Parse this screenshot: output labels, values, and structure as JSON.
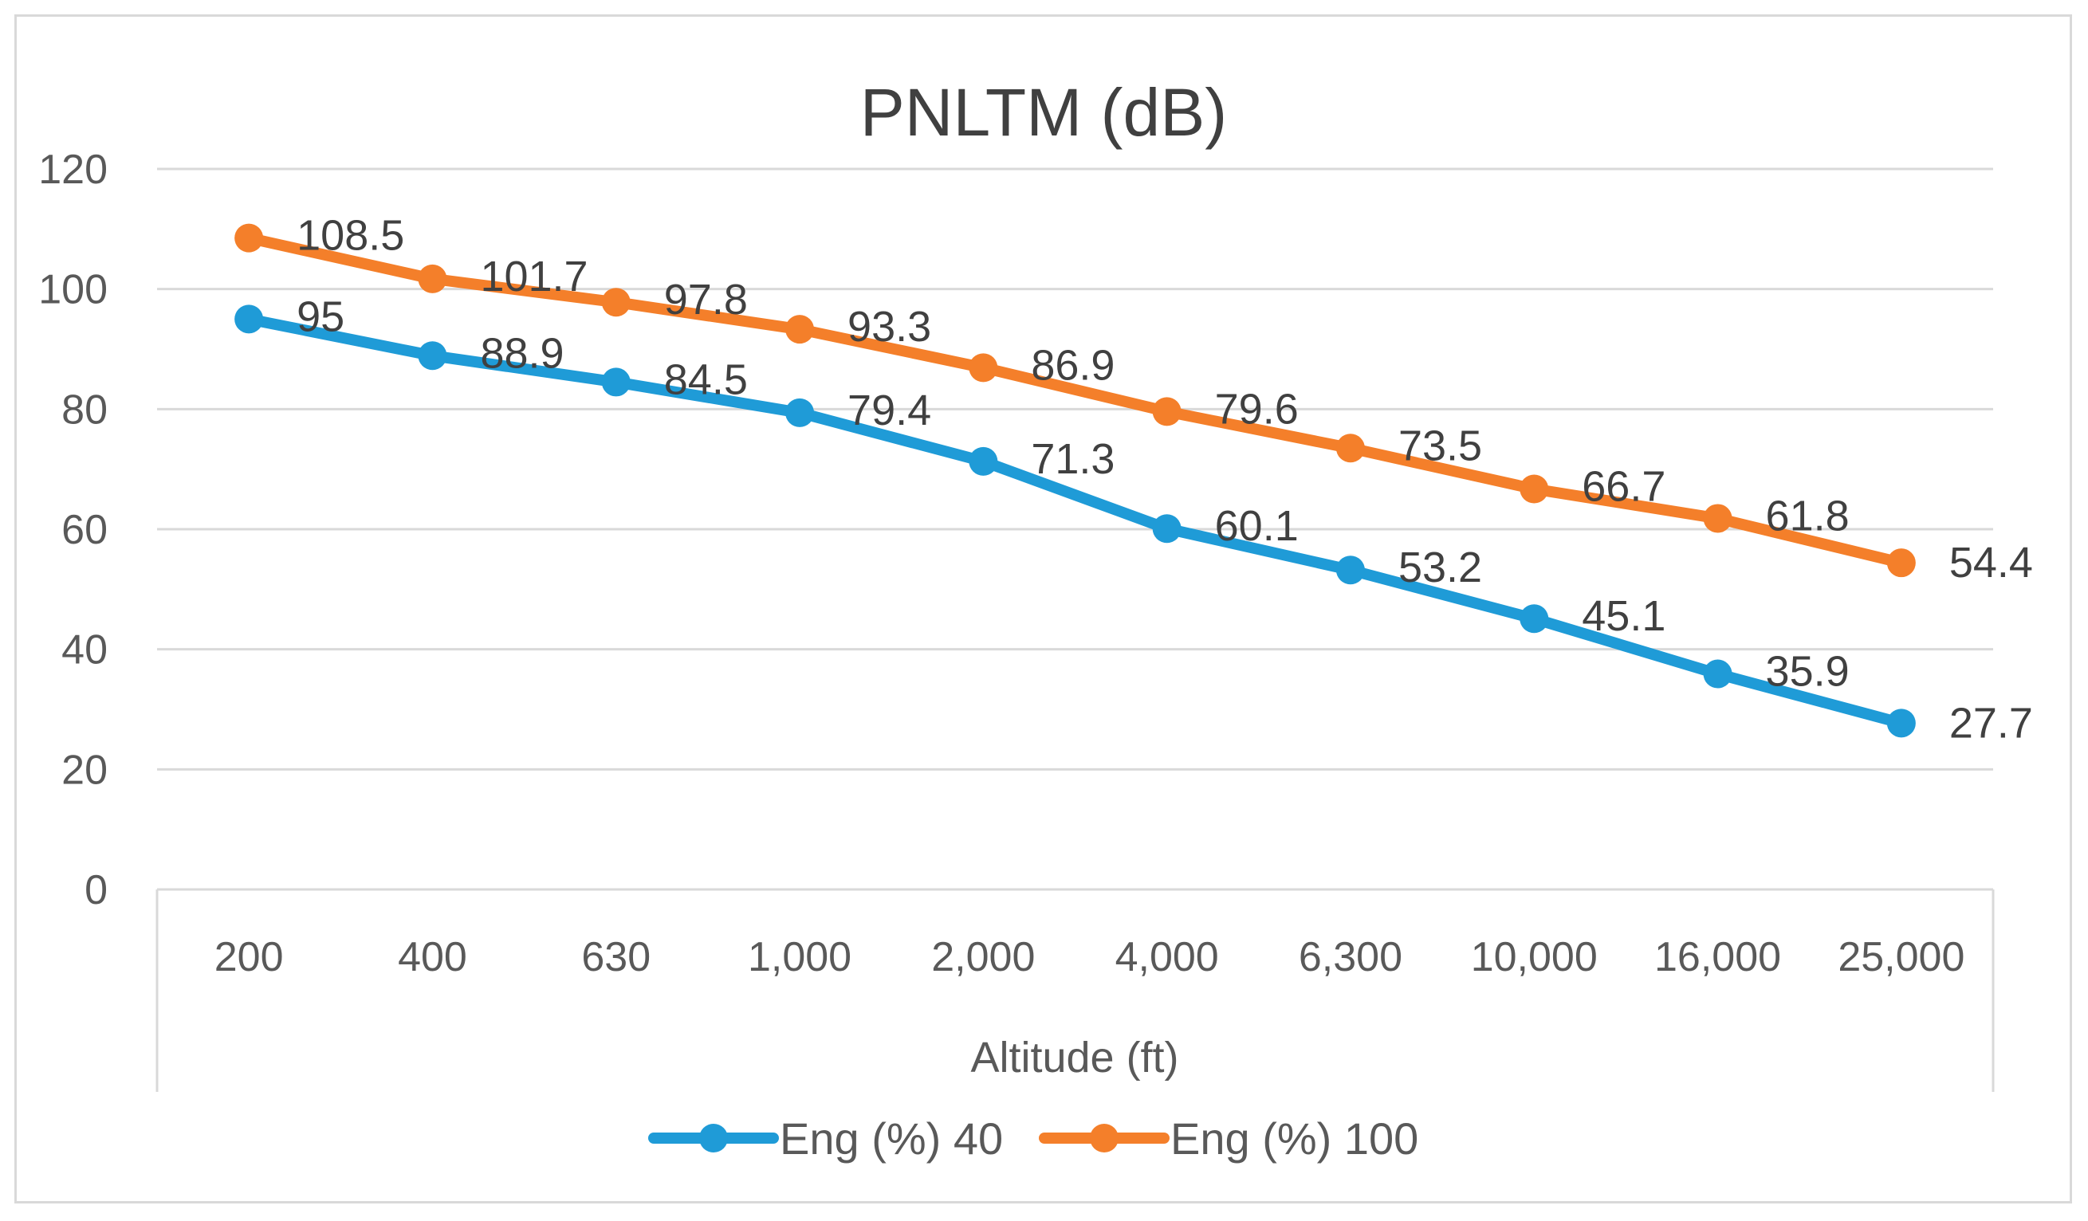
{
  "chart_data": {
    "type": "line",
    "title": "PNLTM (dB)",
    "xlabel": "Altitude (ft)",
    "ylabel": "",
    "categories": [
      "200",
      "400",
      "630",
      "1,000",
      "2,000",
      "4,000",
      "6,300",
      "10,000",
      "16,000",
      "25,000"
    ],
    "ylim": [
      0,
      120
    ],
    "yticks": [
      "0",
      "20",
      "40",
      "60",
      "80",
      "100",
      "120"
    ],
    "grid": true,
    "legend_position": "bottom",
    "series": [
      {
        "name": "Eng (%) 40",
        "color": "#1f9bd7",
        "values": [
          95,
          88.9,
          84.5,
          79.4,
          71.3,
          60.1,
          53.2,
          45.1,
          35.9,
          27.7
        ],
        "labels": [
          "95",
          "88.9",
          "84.5",
          "79.4",
          "71.3",
          "60.1",
          "53.2",
          "45.1",
          "35.9",
          "27.7"
        ]
      },
      {
        "name": "Eng (%) 100",
        "color": "#f47f2a",
        "values": [
          108.5,
          101.7,
          97.8,
          93.3,
          86.9,
          79.6,
          73.5,
          66.7,
          61.8,
          54.4
        ],
        "labels": [
          "108.5",
          "101.7",
          "97.8",
          "93.3",
          "86.9",
          "79.6",
          "73.5",
          "66.7",
          "61.8",
          "54.4"
        ]
      }
    ]
  }
}
